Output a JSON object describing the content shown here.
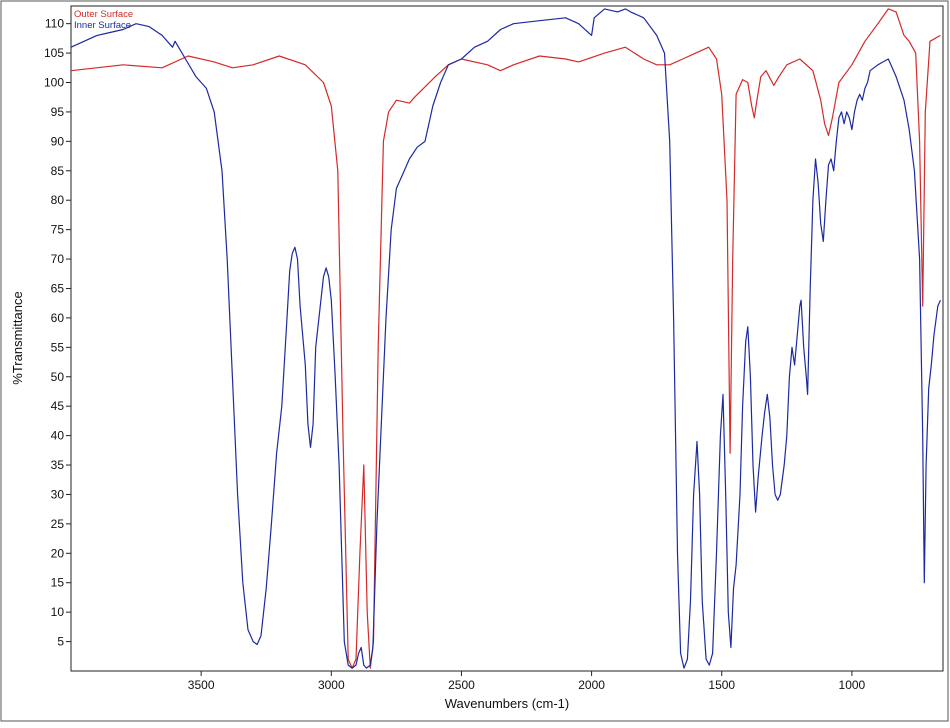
{
  "chart_data": {
    "type": "line",
    "title": "",
    "xlabel": "Wavenumbers (cm-1)",
    "ylabel": "%Transmittance",
    "xlim": [
      4000,
      650
    ],
    "ylim": [
      0,
      113
    ],
    "x_ticks": [
      3500,
      3000,
      2500,
      2000,
      1500,
      1000
    ],
    "y_ticks": [
      5,
      10,
      15,
      20,
      25,
      30,
      35,
      40,
      45,
      50,
      55,
      60,
      65,
      70,
      75,
      80,
      85,
      90,
      95,
      100,
      105,
      110
    ],
    "legend_position": "top-left",
    "series": [
      {
        "name": "Outer Surface",
        "color": "#d42a2a",
        "points": [
          [
            4000,
            102
          ],
          [
            3800,
            103
          ],
          [
            3650,
            102.5
          ],
          [
            3550,
            104.5
          ],
          [
            3450,
            103.5
          ],
          [
            3380,
            102.5
          ],
          [
            3300,
            103
          ],
          [
            3200,
            104.5
          ],
          [
            3100,
            103
          ],
          [
            3030,
            100
          ],
          [
            3000,
            96
          ],
          [
            2975,
            85
          ],
          [
            2955,
            40
          ],
          [
            2935,
            2
          ],
          [
            2920,
            0.5
          ],
          [
            2905,
            2
          ],
          [
            2890,
            20
          ],
          [
            2875,
            35
          ],
          [
            2862,
            10
          ],
          [
            2850,
            0.5
          ],
          [
            2838,
            5
          ],
          [
            2820,
            55
          ],
          [
            2800,
            90
          ],
          [
            2780,
            95
          ],
          [
            2750,
            97
          ],
          [
            2700,
            96.5
          ],
          [
            2680,
            97.5
          ],
          [
            2600,
            101
          ],
          [
            2550,
            103
          ],
          [
            2500,
            104
          ],
          [
            2400,
            103
          ],
          [
            2350,
            102
          ],
          [
            2300,
            103
          ],
          [
            2200,
            104.5
          ],
          [
            2100,
            104
          ],
          [
            2050,
            103.5
          ],
          [
            1950,
            105
          ],
          [
            1870,
            106
          ],
          [
            1800,
            104
          ],
          [
            1750,
            103
          ],
          [
            1700,
            103
          ],
          [
            1650,
            104
          ],
          [
            1600,
            105
          ],
          [
            1550,
            106
          ],
          [
            1520,
            104
          ],
          [
            1500,
            98
          ],
          [
            1480,
            80
          ],
          [
            1468,
            37
          ],
          [
            1458,
            70
          ],
          [
            1445,
            98
          ],
          [
            1420,
            100.5
          ],
          [
            1400,
            100
          ],
          [
            1385,
            96
          ],
          [
            1375,
            94
          ],
          [
            1365,
            97
          ],
          [
            1350,
            101
          ],
          [
            1330,
            102
          ],
          [
            1300,
            99.5
          ],
          [
            1280,
            101
          ],
          [
            1250,
            103
          ],
          [
            1200,
            104
          ],
          [
            1150,
            102
          ],
          [
            1120,
            97
          ],
          [
            1105,
            93
          ],
          [
            1090,
            91
          ],
          [
            1075,
            94
          ],
          [
            1050,
            100
          ],
          [
            1000,
            103
          ],
          [
            950,
            107
          ],
          [
            900,
            110
          ],
          [
            860,
            112.5
          ],
          [
            830,
            112
          ],
          [
            800,
            108
          ],
          [
            780,
            107
          ],
          [
            755,
            105
          ],
          [
            740,
            90
          ],
          [
            728,
            62
          ],
          [
            718,
            95
          ],
          [
            700,
            107
          ],
          [
            660,
            108
          ]
        ]
      },
      {
        "name": "Inner Surface",
        "color": "#1c2aa0",
        "points": [
          [
            4000,
            106
          ],
          [
            3950,
            107
          ],
          [
            3900,
            108
          ],
          [
            3850,
            108.5
          ],
          [
            3800,
            109
          ],
          [
            3750,
            110
          ],
          [
            3700,
            109.5
          ],
          [
            3650,
            108
          ],
          [
            3610,
            106
          ],
          [
            3600,
            107
          ],
          [
            3560,
            104
          ],
          [
            3520,
            101
          ],
          [
            3480,
            99
          ],
          [
            3450,
            95
          ],
          [
            3420,
            85
          ],
          [
            3400,
            70
          ],
          [
            3380,
            50
          ],
          [
            3360,
            30
          ],
          [
            3340,
            15
          ],
          [
            3320,
            7
          ],
          [
            3300,
            5
          ],
          [
            3285,
            4.5
          ],
          [
            3270,
            6
          ],
          [
            3250,
            14
          ],
          [
            3230,
            25
          ],
          [
            3210,
            37
          ],
          [
            3190,
            45
          ],
          [
            3170,
            60
          ],
          [
            3160,
            68
          ],
          [
            3150,
            71
          ],
          [
            3140,
            72
          ],
          [
            3130,
            70
          ],
          [
            3120,
            62
          ],
          [
            3100,
            52
          ],
          [
            3090,
            42
          ],
          [
            3080,
            38
          ],
          [
            3070,
            42
          ],
          [
            3060,
            55
          ],
          [
            3040,
            63
          ],
          [
            3030,
            67
          ],
          [
            3020,
            68.5
          ],
          [
            3010,
            67
          ],
          [
            3000,
            63
          ],
          [
            2985,
            50
          ],
          [
            2970,
            35
          ],
          [
            2960,
            20
          ],
          [
            2950,
            5
          ],
          [
            2935,
            1
          ],
          [
            2920,
            0.5
          ],
          [
            2905,
            1
          ],
          [
            2895,
            3
          ],
          [
            2885,
            4
          ],
          [
            2875,
            1
          ],
          [
            2865,
            0.5
          ],
          [
            2850,
            1
          ],
          [
            2840,
            4
          ],
          [
            2825,
            25
          ],
          [
            2810,
            40
          ],
          [
            2790,
            60
          ],
          [
            2770,
            75
          ],
          [
            2750,
            82
          ],
          [
            2730,
            84
          ],
          [
            2700,
            87
          ],
          [
            2670,
            89
          ],
          [
            2640,
            90
          ],
          [
            2610,
            96
          ],
          [
            2580,
            100
          ],
          [
            2550,
            103
          ],
          [
            2500,
            104
          ],
          [
            2450,
            106
          ],
          [
            2400,
            107
          ],
          [
            2350,
            109
          ],
          [
            2300,
            110
          ],
          [
            2200,
            110.5
          ],
          [
            2100,
            111
          ],
          [
            2050,
            110
          ],
          [
            2000,
            108
          ],
          [
            1990,
            111
          ],
          [
            1950,
            112.5
          ],
          [
            1900,
            112
          ],
          [
            1870,
            112.5
          ],
          [
            1850,
            112
          ],
          [
            1800,
            111
          ],
          [
            1750,
            108
          ],
          [
            1720,
            105
          ],
          [
            1700,
            90
          ],
          [
            1685,
            60
          ],
          [
            1670,
            20
          ],
          [
            1658,
            3
          ],
          [
            1645,
            0.5
          ],
          [
            1632,
            2
          ],
          [
            1620,
            12
          ],
          [
            1608,
            30
          ],
          [
            1595,
            39
          ],
          [
            1585,
            30
          ],
          [
            1575,
            12
          ],
          [
            1560,
            2
          ],
          [
            1548,
            1
          ],
          [
            1535,
            3
          ],
          [
            1520,
            20
          ],
          [
            1505,
            40
          ],
          [
            1495,
            47
          ],
          [
            1485,
            30
          ],
          [
            1475,
            10
          ],
          [
            1465,
            4
          ],
          [
            1455,
            14
          ],
          [
            1445,
            18
          ],
          [
            1430,
            30
          ],
          [
            1420,
            45
          ],
          [
            1408,
            56
          ],
          [
            1400,
            58.5
          ],
          [
            1390,
            50
          ],
          [
            1380,
            35
          ],
          [
            1370,
            27
          ],
          [
            1360,
            33
          ],
          [
            1345,
            40
          ],
          [
            1335,
            44
          ],
          [
            1325,
            47
          ],
          [
            1315,
            43
          ],
          [
            1305,
            35
          ],
          [
            1295,
            30
          ],
          [
            1285,
            29
          ],
          [
            1275,
            30
          ],
          [
            1260,
            35
          ],
          [
            1250,
            40
          ],
          [
            1240,
            50
          ],
          [
            1230,
            55
          ],
          [
            1220,
            52
          ],
          [
            1210,
            57
          ],
          [
            1200,
            62
          ],
          [
            1195,
            63
          ],
          [
            1185,
            55
          ],
          [
            1175,
            50
          ],
          [
            1170,
            47
          ],
          [
            1160,
            65
          ],
          [
            1150,
            80
          ],
          [
            1140,
            87
          ],
          [
            1130,
            83
          ],
          [
            1120,
            76
          ],
          [
            1110,
            73
          ],
          [
            1100,
            80
          ],
          [
            1090,
            86
          ],
          [
            1080,
            87
          ],
          [
            1070,
            85
          ],
          [
            1060,
            90
          ],
          [
            1050,
            94
          ],
          [
            1040,
            95
          ],
          [
            1030,
            93
          ],
          [
            1020,
            95
          ],
          [
            1010,
            94
          ],
          [
            1000,
            92
          ],
          [
            990,
            95
          ],
          [
            980,
            97
          ],
          [
            970,
            98
          ],
          [
            960,
            97
          ],
          [
            950,
            99
          ],
          [
            940,
            100
          ],
          [
            930,
            102
          ],
          [
            900,
            103
          ],
          [
            880,
            103.5
          ],
          [
            860,
            104
          ],
          [
            850,
            103
          ],
          [
            830,
            101
          ],
          [
            800,
            97
          ],
          [
            780,
            92
          ],
          [
            760,
            85
          ],
          [
            740,
            70
          ],
          [
            728,
            40
          ],
          [
            722,
            15
          ],
          [
            715,
            35
          ],
          [
            705,
            48
          ],
          [
            695,
            52
          ],
          [
            685,
            57
          ],
          [
            670,
            62
          ],
          [
            660,
            63
          ]
        ]
      }
    ]
  }
}
